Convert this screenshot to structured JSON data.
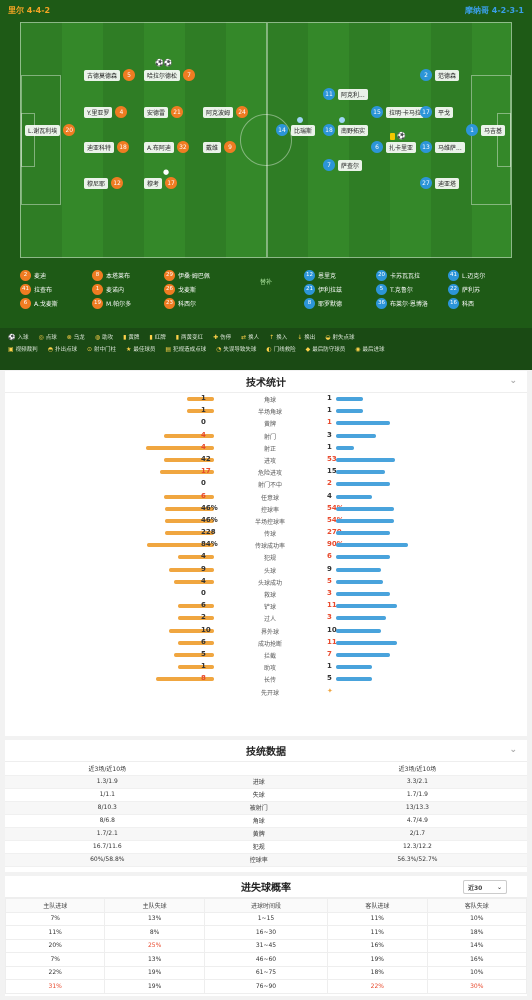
{
  "header": {
    "home": "里尔 4-4-2",
    "away": "摩纳哥 4-2-3-1"
  },
  "home_players": [
    {
      "num": "5",
      "name": "古德莫德森"
    },
    {
      "num": "7",
      "name": "哈拉尔德松"
    },
    {
      "num": "4",
      "name": "Y.里亚罗"
    },
    {
      "num": "21",
      "name": "安德雷"
    },
    {
      "num": "24",
      "name": "阿克波姆"
    },
    {
      "num": "20",
      "name": "L.谢瓦利埃"
    },
    {
      "num": "18",
      "name": "迪亚科特"
    },
    {
      "num": "32",
      "name": "A.布阿迪"
    },
    {
      "num": "9",
      "name": "戴维"
    },
    {
      "num": "12",
      "name": "穆尼耶"
    },
    {
      "num": "17",
      "name": "穆考"
    }
  ],
  "away_players": [
    {
      "num": "2",
      "name": "范德森"
    },
    {
      "num": "11",
      "name": "阿克利..."
    },
    {
      "num": "15",
      "name": "拉明·卡马拉"
    },
    {
      "num": "17",
      "name": "平戈"
    },
    {
      "num": "14",
      "name": "比瑞斯"
    },
    {
      "num": "18",
      "name": "南野拓实"
    },
    {
      "num": "1",
      "name": "马吉基"
    },
    {
      "num": "6",
      "name": "扎卡里亚"
    },
    {
      "num": "13",
      "name": "马维萨..."
    },
    {
      "num": "7",
      "name": "萨查尔"
    },
    {
      "num": "27",
      "name": "迪亚塔"
    }
  ],
  "home_bench": [
    {
      "num": "2",
      "name": "麦迪"
    },
    {
      "num": "8",
      "name": "本塔莱布"
    },
    {
      "num": "29",
      "name": "伊桑·姆巴佩"
    },
    {
      "num": "41",
      "name": "拉查布"
    },
    {
      "num": "1",
      "name": "麦诺内"
    },
    {
      "num": "26",
      "name": "戈麦斯"
    },
    {
      "num": "6",
      "name": "A.戈麦斯"
    },
    {
      "num": "19",
      "name": "M.帕尔多"
    },
    {
      "num": "23",
      "name": "科西尔"
    }
  ],
  "away_bench": [
    {
      "num": "12",
      "name": "恩里克"
    },
    {
      "num": "20",
      "name": "卡苏瓦瓦拉"
    },
    {
      "num": "41",
      "name": "L.迈克尔"
    },
    {
      "num": "21",
      "name": "伊利拉兹"
    },
    {
      "num": "5",
      "name": "T.克鲁尔"
    },
    {
      "num": "22",
      "name": "萨利苏"
    },
    {
      "num": "8",
      "name": "耶罗默德"
    },
    {
      "num": "36",
      "name": "布莱尔·恩博洛"
    },
    {
      "num": "16",
      "name": "科西"
    }
  ],
  "coach_label": "替补",
  "legend": [
    {
      "icon": "⚽",
      "label": "入球"
    },
    {
      "icon": "◎",
      "label": "点球"
    },
    {
      "icon": "⊗",
      "label": "乌龙"
    },
    {
      "icon": "◍",
      "label": "助攻"
    },
    {
      "icon": "▮",
      "label": "黄牌"
    },
    {
      "icon": "▮",
      "label": "红牌"
    },
    {
      "icon": "▮",
      "label": "两黄变红"
    },
    {
      "icon": "✚",
      "label": "伤停"
    },
    {
      "icon": "⇄",
      "label": "换人"
    },
    {
      "icon": "↑",
      "label": "换入"
    },
    {
      "icon": "↓",
      "label": "换出"
    },
    {
      "icon": "◒",
      "label": "射失点球"
    },
    {
      "icon": "▣",
      "label": "视频裁判"
    },
    {
      "icon": "◓",
      "label": "扑出点球"
    },
    {
      "icon": "⊙",
      "label": "射中门柱"
    },
    {
      "icon": "★",
      "label": "最佳球员"
    },
    {
      "icon": "▤",
      "label": "犯规造成点球"
    },
    {
      "icon": "◔",
      "label": "失误导致失球"
    },
    {
      "icon": "◐",
      "label": "门线救险"
    },
    {
      "icon": "◆",
      "label": "最后防守球员"
    },
    {
      "icon": "◉",
      "label": "最后进球"
    }
  ],
  "tech": {
    "title": "技术统计",
    "rows": [
      {
        "label": "角球",
        "home": "1",
        "away": "1",
        "hw": 0.15,
        "aw": 0.15
      },
      {
        "label": "半场角球",
        "home": "1",
        "away": "1",
        "hw": 0.15,
        "aw": 0.15
      },
      {
        "label": "黄牌",
        "home": "0",
        "away": "1",
        "hw": 0,
        "aw": 0.3
      },
      {
        "label": "射门",
        "home": "4",
        "away": "3",
        "hw": 0.28,
        "aw": 0.22
      },
      {
        "label": "射正",
        "home": "4",
        "away": "1",
        "hw": 0.38,
        "aw": 0.1
      },
      {
        "label": "进攻",
        "home": "42",
        "away": "53",
        "hw": 0.28,
        "aw": 0.33
      },
      {
        "label": "危险进攻",
        "home": "17",
        "away": "15",
        "hw": 0.3,
        "aw": 0.27
      },
      {
        "label": "射门不中",
        "home": "0",
        "away": "2",
        "hw": 0,
        "aw": 0.3
      },
      {
        "label": "任意球",
        "home": "6",
        "away": "4",
        "hw": 0.28,
        "aw": 0.2
      },
      {
        "label": "控球率",
        "home": "46%",
        "away": "54%",
        "hw": 0.27,
        "aw": 0.32
      },
      {
        "label": "半场控球率",
        "home": "46%",
        "away": "54%",
        "hw": 0.27,
        "aw": 0.32
      },
      {
        "label": "传球",
        "home": "228",
        "away": "270",
        "hw": 0.27,
        "aw": 0.3
      },
      {
        "label": "传球成功率",
        "home": "84%",
        "away": "90%",
        "hw": 0.37,
        "aw": 0.4
      },
      {
        "label": "犯规",
        "home": "4",
        "away": "6",
        "hw": 0.2,
        "aw": 0.3
      },
      {
        "label": "头球",
        "home": "9",
        "away": "9",
        "hw": 0.25,
        "aw": 0.25
      },
      {
        "label": "头球成功",
        "home": "4",
        "away": "5",
        "hw": 0.22,
        "aw": 0.26
      },
      {
        "label": "救球",
        "home": "0",
        "away": "3",
        "hw": 0,
        "aw": 0.3
      },
      {
        "label": "铲球",
        "home": "6",
        "away": "11",
        "hw": 0.2,
        "aw": 0.34
      },
      {
        "label": "过人",
        "home": "2",
        "away": "3",
        "hw": 0.2,
        "aw": 0.28
      },
      {
        "label": "界外球",
        "home": "10",
        "away": "10",
        "hw": 0.25,
        "aw": 0.25
      },
      {
        "label": "成功抢断",
        "home": "6",
        "away": "11",
        "hw": 0.2,
        "aw": 0.34
      },
      {
        "label": "拦截",
        "home": "5",
        "away": "7",
        "hw": 0.22,
        "aw": 0.3
      },
      {
        "label": "助攻",
        "home": "1",
        "away": "1",
        "hw": 0.2,
        "aw": 0.2
      },
      {
        "label": "长传",
        "home": "8",
        "away": "5",
        "hw": 0.32,
        "aw": 0.2
      },
      {
        "label": "先开球",
        "home": "",
        "away": "✦",
        "hw": 0,
        "aw": 0
      }
    ]
  },
  "techdata": {
    "title": "技统数据",
    "col_home": "近3场/近10场",
    "col_away": "近3场/近10场",
    "rows": [
      {
        "home": "1.3/1.9",
        "label": "进球",
        "away": "3.3/2.1"
      },
      {
        "home": "1/1.1",
        "label": "失球",
        "away": "1.7/1.9"
      },
      {
        "home": "8/10.3",
        "label": "被射门",
        "away": "13/13.3"
      },
      {
        "home": "8/6.8",
        "label": "角球",
        "away": "4.7/4.9"
      },
      {
        "home": "1.7/2.1",
        "label": "黄牌",
        "away": "2/1.7"
      },
      {
        "home": "16.7/11.6",
        "label": "犯规",
        "away": "12.3/12.2"
      },
      {
        "home": "60%/58.8%",
        "label": "控球率",
        "away": "56.3%/52.7%"
      }
    ]
  },
  "goalprob": {
    "title": "进失球概率",
    "select": "近30",
    "headers": [
      "主队进球",
      "主队失球",
      "进球时间段",
      "客队进球",
      "客队失球"
    ],
    "rows": [
      [
        "7%",
        "13%",
        "1~15",
        "11%",
        "10%"
      ],
      [
        "11%",
        "8%",
        "16~30",
        "11%",
        "18%"
      ],
      [
        "20%",
        "25%",
        "31~45",
        "16%",
        "14%"
      ],
      [
        "7%",
        "13%",
        "46~60",
        "19%",
        "16%"
      ],
      [
        "22%",
        "19%",
        "61~75",
        "18%",
        "10%"
      ],
      [
        "31%",
        "19%",
        "76~90",
        "22%",
        "30%"
      ]
    ]
  }
}
